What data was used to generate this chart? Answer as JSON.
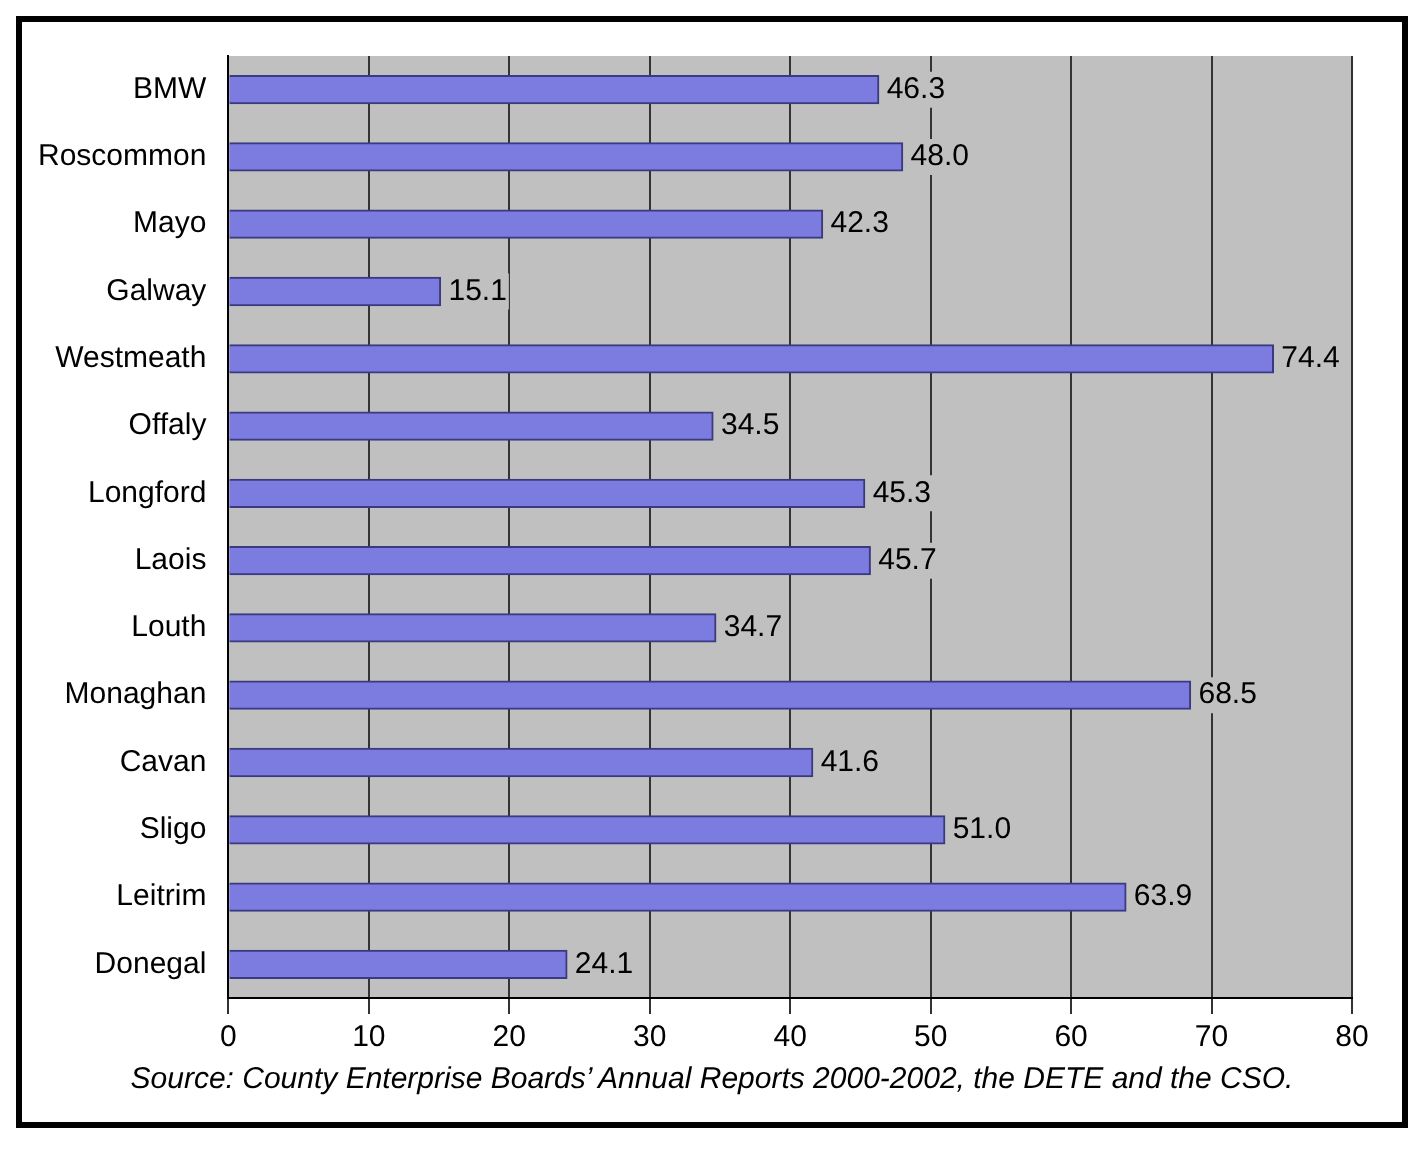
{
  "chart_data": {
    "type": "bar",
    "orientation": "horizontal",
    "categories": [
      "BMW",
      "Roscommon",
      "Mayo",
      "Galway",
      "Westmeath",
      "Offaly",
      "Longford",
      "Laois",
      "Louth",
      "Monaghan",
      "Cavan",
      "Sligo",
      "Leitrim",
      "Donegal"
    ],
    "values": [
      46.3,
      48.0,
      42.3,
      15.1,
      74.4,
      34.5,
      45.3,
      45.7,
      34.7,
      68.5,
      41.6,
      51.0,
      63.9,
      24.1
    ],
    "value_labels": [
      "46.3",
      "48.0",
      "42.3",
      "15.1",
      "74.4",
      "34.5",
      "45.3",
      "45.7",
      "34.7",
      "68.5",
      "41.6",
      "51.0",
      "63.9",
      "24.1"
    ],
    "color": "#7b7be0",
    "xlim": [
      0,
      80
    ],
    "xticks": [
      0,
      10,
      20,
      30,
      40,
      50,
      60,
      70,
      80
    ],
    "grid": "x",
    "legend": false,
    "annotations": [
      "Source: County Enterprise Boards’ Annual Reports 2000-2002, the DETE and the CSO."
    ]
  }
}
